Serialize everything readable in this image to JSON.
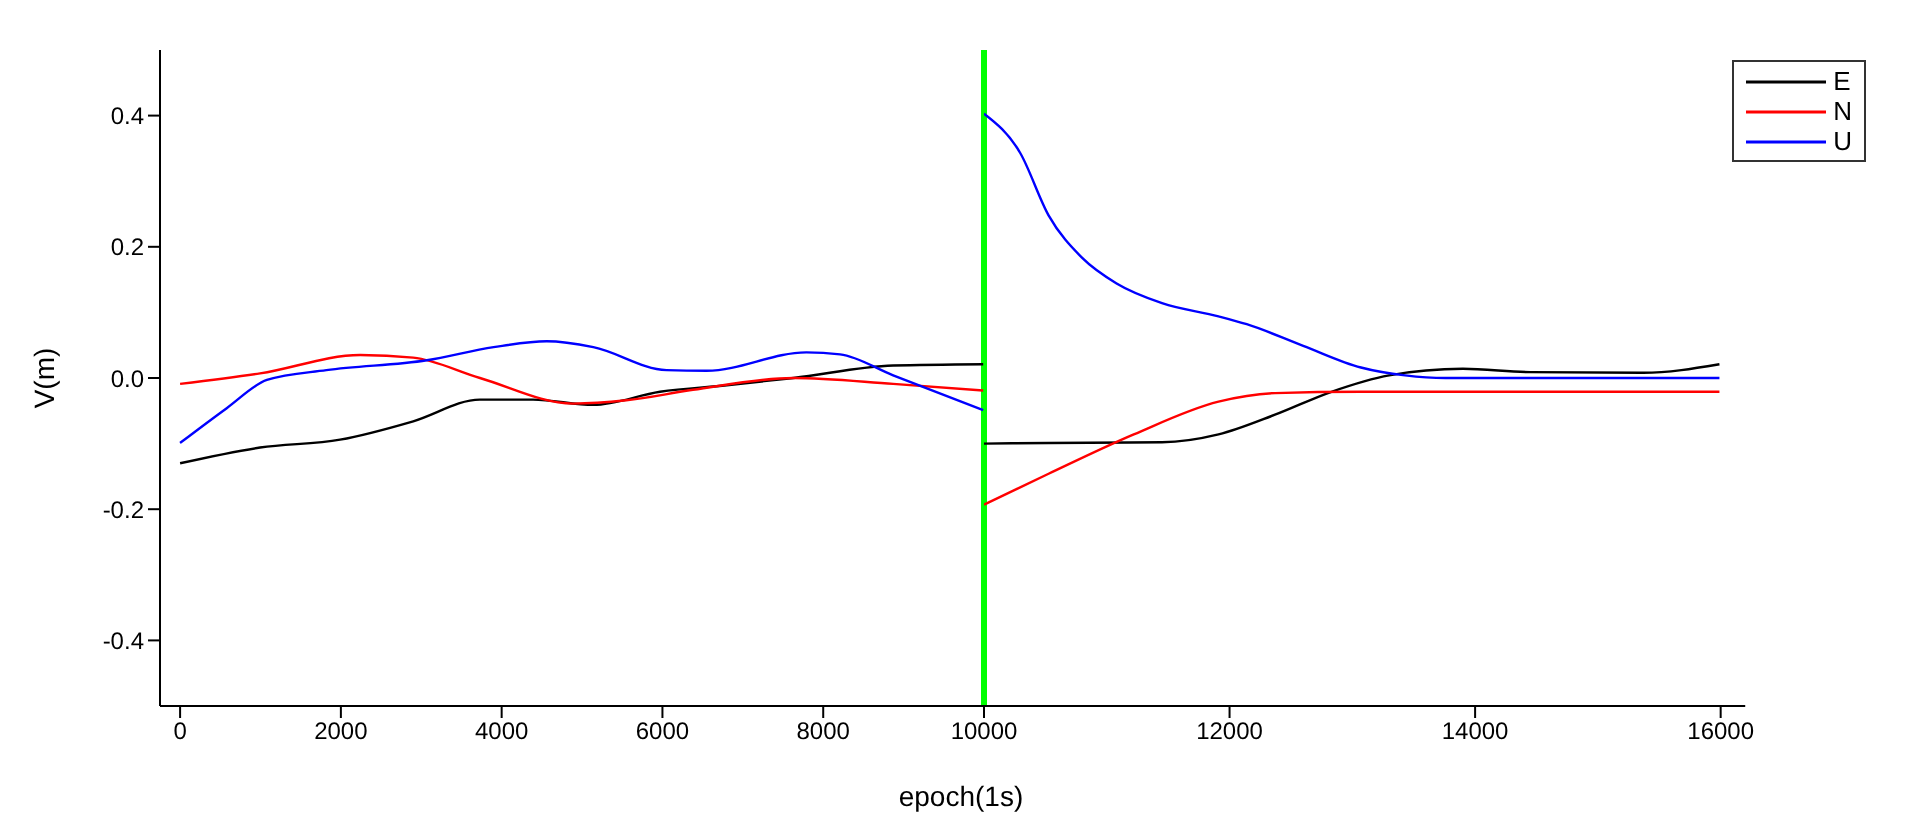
{
  "chart_data": [
    {
      "type": "line",
      "xlabel": "epoch(1s)",
      "ylabel": "V(m)",
      "xlim": [
        -250,
        10000
      ],
      "xticks": [
        0,
        2000,
        4000,
        6000,
        8000,
        10000
      ],
      "ylim": [
        -0.5,
        0.5
      ],
      "yticks": [
        -0.4,
        -0.2,
        {
          "value": 0,
          "label": "0.0"
        },
        0.2,
        0.4
      ],
      "legend": false,
      "grid": false,
      "marker": "none",
      "ref_lines": [
        {
          "axis": "x",
          "value": 10000,
          "color": "#00ff00"
        }
      ],
      "series": [
        {
          "color": "#000000",
          "x": [
            0,
            995,
            1990,
            2900,
            3730,
            4390,
            5140,
            5970,
            6800,
            7630,
            8870,
            9990
          ],
          "values": [
            -0.13,
            -0.106,
            -0.094,
            -0.066,
            -0.033,
            -0.033,
            -0.041,
            -0.021,
            -0.011,
            0.0,
            0.019,
            0.021
          ]
        },
        {
          "color": "#ff0000",
          "x": [
            0,
            995,
            2240,
            2900,
            3730,
            4890,
            5550,
            6380,
            7630,
            8870,
            9990
          ],
          "values": [
            -0.009,
            0.007,
            0.035,
            0.031,
            0.0,
            -0.039,
            -0.034,
            -0.018,
            0.0,
            -0.009,
            -0.019
          ]
        },
        {
          "color": "#0000ff",
          "x": [
            0,
            580,
            1080,
            1820,
            3070,
            3900,
            4560,
            5140,
            6050,
            6550,
            7790,
            8210,
            8870,
            9990
          ],
          "values": [
            -0.099,
            -0.046,
            -0.003,
            0.012,
            0.027,
            0.047,
            0.056,
            0.047,
            0.012,
            0.011,
            0.039,
            0.036,
            0.004,
            -0.049
          ]
        }
      ]
    },
    {
      "type": "line",
      "xlim": [
        10000,
        16200
      ],
      "xticks": [
        12000,
        14000,
        16000
      ],
      "ylim": [
        -0.5,
        0.5
      ],
      "yticks": [
        -0.4,
        -0.2,
        0.0,
        0.2,
        0.4
      ],
      "tick_labels": "x",
      "legend": "top right",
      "grid": false,
      "marker": "none",
      "series": [
        {
          "name": "E",
          "color": "#000000",
          "x": [
            10000,
            10526,
            11450,
            11910,
            12370,
            12830,
            13300,
            13900,
            14450,
            15370,
            15990
          ],
          "values": [
            -0.1,
            -0.099,
            -0.098,
            -0.086,
            -0.056,
            -0.021,
            0.004,
            0.014,
            0.009,
            0.008,
            0.021
          ]
        },
        {
          "name": "N",
          "color": "#ff0000",
          "x": [
            10000,
            10526,
            11220,
            11910,
            12370,
            13070,
            15990
          ],
          "values": [
            -0.193,
            -0.146,
            -0.086,
            -0.036,
            -0.023,
            -0.021,
            -0.021
          ]
        },
        {
          "name": "U",
          "color": "#0000ff",
          "x": [
            10000,
            10295,
            10526,
            10800,
            11080,
            11450,
            11910,
            12140,
            12600,
            13070,
            13430,
            13760,
            15990
          ],
          "values": [
            0.403,
            0.343,
            0.248,
            0.183,
            0.144,
            0.114,
            0.094,
            0.082,
            0.049,
            0.016,
            0.004,
            0.0,
            0.0
          ]
        }
      ]
    }
  ]
}
